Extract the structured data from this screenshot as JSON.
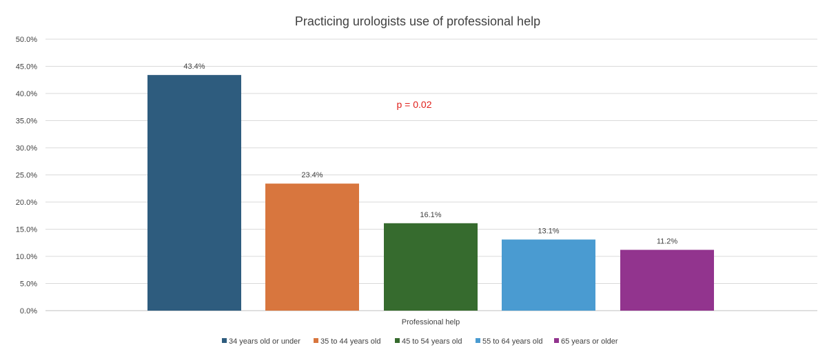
{
  "chart_data": {
    "type": "bar",
    "title": "Practicing urologists use of professional help",
    "xlabel": "",
    "ylabel": "",
    "categories": [
      "Professional help"
    ],
    "category_label": "Professional help",
    "ylim": [
      0,
      50
    ],
    "ytick_values": [
      0,
      5,
      10,
      15,
      20,
      25,
      30,
      35,
      40,
      45,
      50
    ],
    "ytick_labels": [
      "0.0%",
      "5.0%",
      "10.0%",
      "15.0%",
      "20.0%",
      "25.0%",
      "30.0%",
      "35.0%",
      "40.0%",
      "45.0%",
      "50.0%"
    ],
    "grid": true,
    "legend_position": "bottom",
    "series": [
      {
        "name": "34 years old or under",
        "values": [
          43.4
        ],
        "label": "43.4%",
        "color": "#2E5C7E"
      },
      {
        "name": "35 to 44 years old",
        "values": [
          23.4
        ],
        "label": "23.4%",
        "color": "#D8763E"
      },
      {
        "name": "45 to 54 years old",
        "values": [
          16.1
        ],
        "label": "16.1%",
        "color": "#366B2E"
      },
      {
        "name": "55 to 64 years old",
        "values": [
          13.1
        ],
        "label": "13.1%",
        "color": "#4A9BD1"
      },
      {
        "name": "65 years or older",
        "values": [
          11.2
        ],
        "label": "11.2%",
        "color": "#92348E"
      }
    ],
    "annotations": [
      {
        "text": "p = 0.02",
        "color": "#E0201B"
      }
    ]
  }
}
